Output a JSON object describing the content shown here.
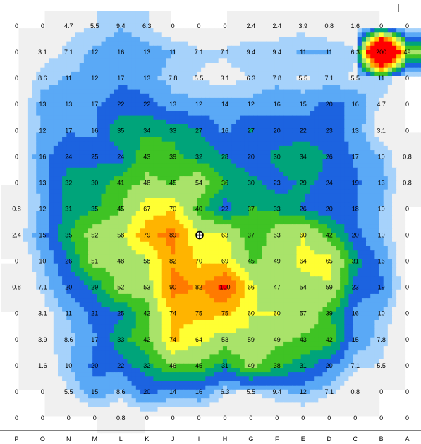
{
  "chart_data": {
    "type": "heatmap",
    "columns": [
      "P",
      "O",
      "N",
      "M",
      "L",
      "K",
      "J",
      "I",
      "H",
      "G",
      "F",
      "E",
      "D",
      "C",
      "B",
      "A"
    ],
    "rows": [
      [
        0,
        0,
        4.7,
        5.5,
        9.4,
        6.3,
        0,
        0,
        0,
        2.4,
        2.4,
        3.9,
        0.8,
        1.6,
        0,
        0
      ],
      [
        0,
        3.1,
        7.1,
        12,
        16,
        13,
        11,
        7.1,
        7.1,
        9.4,
        9.4,
        11,
        11,
        6.3,
        200,
        49
      ],
      [
        0,
        8.6,
        11,
        12,
        17,
        13,
        7.8,
        5.5,
        3.1,
        6.3,
        7.8,
        5.5,
        7.1,
        5.5,
        11,
        0
      ],
      [
        0,
        13,
        13,
        17,
        22,
        22,
        13,
        12,
        14,
        12,
        16,
        15,
        20,
        16,
        4.7,
        0
      ],
      [
        0,
        12,
        17,
        16,
        35,
        34,
        33,
        27,
        16,
        27,
        20,
        22,
        23,
        13,
        3.1,
        0
      ],
      [
        0,
        16,
        24,
        25,
        24,
        43,
        39,
        32,
        28,
        20,
        30,
        34,
        26,
        17,
        10,
        0.8
      ],
      [
        0,
        13,
        32,
        30,
        41,
        48,
        45,
        54,
        36,
        30,
        23,
        29,
        24,
        19,
        13,
        0.8
      ],
      [
        0.8,
        12,
        31,
        35,
        45,
        67,
        70,
        40,
        22,
        37,
        33,
        26,
        20,
        18,
        10,
        0
      ],
      [
        2.4,
        15,
        35,
        52,
        58,
        79,
        89,
        62,
        63,
        37,
        53,
        60,
        42,
        20,
        10,
        0
      ],
      [
        0,
        10,
        26,
        51,
        48,
        58,
        82,
        70,
        69,
        45,
        49,
        64,
        65,
        31,
        16,
        0
      ],
      [
        0.8,
        7.1,
        20,
        29,
        52,
        53,
        90,
        82,
        100,
        66,
        47,
        54,
        59,
        23,
        19,
        0
      ],
      [
        0,
        3.1,
        11,
        21,
        25,
        42,
        74,
        75,
        75,
        60,
        60,
        57,
        39,
        16,
        10,
        0
      ],
      [
        0,
        3.9,
        8.6,
        17,
        33,
        42,
        74,
        64,
        53,
        59,
        49,
        43,
        42,
        15,
        7.8,
        0
      ],
      [
        0,
        1.6,
        10,
        20,
        22,
        32,
        46,
        45,
        31,
        49,
        38,
        31,
        20,
        7.1,
        5.5,
        0
      ],
      [
        0,
        0,
        5.5,
        15,
        8.6,
        20,
        14,
        16,
        6.3,
        5.5,
        9.4,
        12,
        7.1,
        0.8,
        0,
        0
      ],
      [
        0,
        0,
        0,
        0,
        0.8,
        0,
        0,
        0,
        0,
        0,
        0,
        0,
        0,
        0,
        0,
        0
      ]
    ],
    "color_scale": [
      {
        "min": 0,
        "color": "#ffffff"
      },
      {
        "min": 0.001,
        "color": "#f0f0f0"
      },
      {
        "min": 6,
        "color": "#a6d2fb"
      },
      {
        "min": 10.5,
        "color": "#5aa9f6"
      },
      {
        "min": 18,
        "color": "#1c63e0"
      },
      {
        "min": 27,
        "color": "#00a47a"
      },
      {
        "min": 36,
        "color": "#3fc324"
      },
      {
        "min": 46,
        "color": "#a9e36a"
      },
      {
        "min": 60,
        "color": "#ffff33"
      },
      {
        "min": 72,
        "color": "#ffb400"
      },
      {
        "min": 84,
        "color": "#ff7a00"
      },
      {
        "min": 96,
        "color": "#ff0000"
      }
    ],
    "marker": {
      "row": 8,
      "col": 7,
      "symbol": "crosshair"
    }
  }
}
